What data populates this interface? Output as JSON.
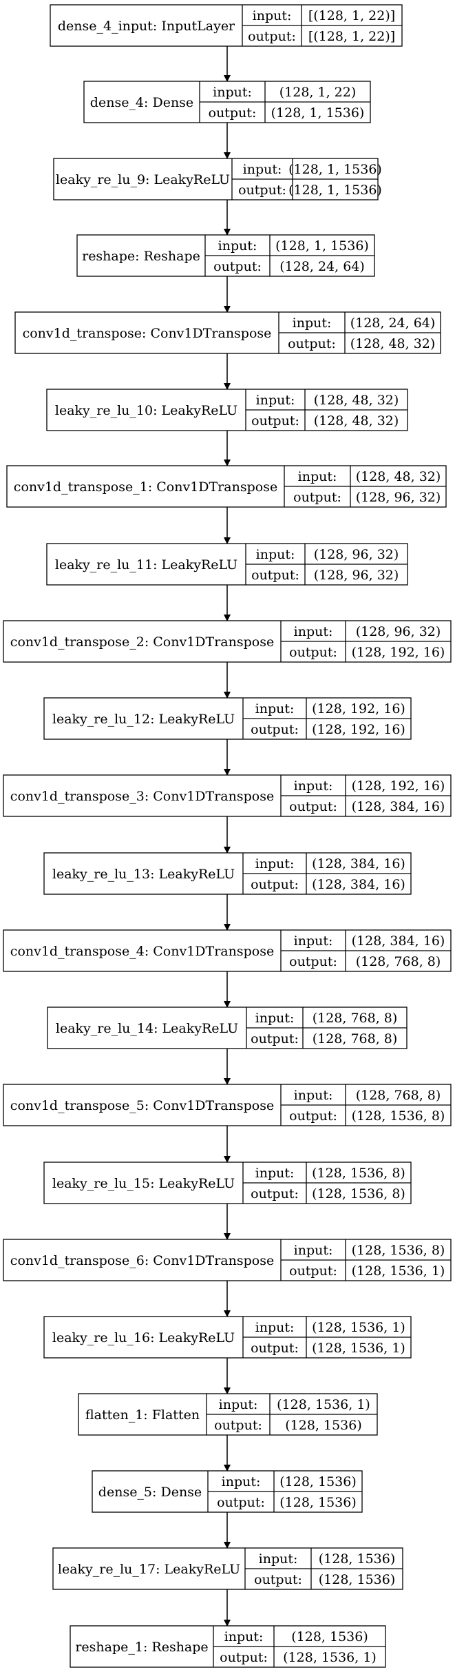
{
  "title": "Keras model plot",
  "labels": {
    "input": "input:",
    "output": "output:"
  },
  "layers": [
    {
      "name": "dense_4_input: InputLayer",
      "input": "[(128, 1, 22)]",
      "output": "[(128, 1, 22)]"
    },
    {
      "name": "dense_4: Dense",
      "input": "(128, 1, 22)",
      "output": "(128, 1, 1536)"
    },
    {
      "name": "leaky_re_lu_9: LeakyReLU",
      "input": "(128, 1, 1536)",
      "output": "(128, 1, 1536)"
    },
    {
      "name": "reshape: Reshape",
      "input": "(128, 1, 1536)",
      "output": "(128, 24, 64)"
    },
    {
      "name": "conv1d_transpose: Conv1DTranspose",
      "input": "(128, 24, 64)",
      "output": "(128, 48, 32)"
    },
    {
      "name": "leaky_re_lu_10: LeakyReLU",
      "input": "(128, 48, 32)",
      "output": "(128, 48, 32)"
    },
    {
      "name": "conv1d_transpose_1: Conv1DTranspose",
      "input": "(128, 48, 32)",
      "output": "(128, 96, 32)"
    },
    {
      "name": "leaky_re_lu_11: LeakyReLU",
      "input": "(128, 96, 32)",
      "output": "(128, 96, 32)"
    },
    {
      "name": "conv1d_transpose_2: Conv1DTranspose",
      "input": "(128, 96, 32)",
      "output": "(128, 192, 16)"
    },
    {
      "name": "leaky_re_lu_12: LeakyReLU",
      "input": "(128, 192, 16)",
      "output": "(128, 192, 16)"
    },
    {
      "name": "conv1d_transpose_3: Conv1DTranspose",
      "input": "(128, 192, 16)",
      "output": "(128, 384, 16)"
    },
    {
      "name": "leaky_re_lu_13: LeakyReLU",
      "input": "(128, 384, 16)",
      "output": "(128, 384, 16)"
    },
    {
      "name": "conv1d_transpose_4: Conv1DTranspose",
      "input": "(128, 384, 16)",
      "output": "(128, 768, 8)"
    },
    {
      "name": "leaky_re_lu_14: LeakyReLU",
      "input": "(128, 768, 8)",
      "output": "(128, 768, 8)"
    },
    {
      "name": "conv1d_transpose_5: Conv1DTranspose",
      "input": "(128, 768, 8)",
      "output": "(128, 1536, 8)"
    },
    {
      "name": "leaky_re_lu_15: LeakyReLU",
      "input": "(128, 1536, 8)",
      "output": "(128, 1536, 8)"
    },
    {
      "name": "conv1d_transpose_6: Conv1DTranspose",
      "input": "(128, 1536, 8)",
      "output": "(128, 1536, 1)"
    },
    {
      "name": "leaky_re_lu_16: LeakyReLU",
      "input": "(128, 1536, 1)",
      "output": "(128, 1536, 1)"
    },
    {
      "name": "flatten_1: Flatten",
      "input": "(128, 1536, 1)",
      "output": "(128, 1536)"
    },
    {
      "name": "dense_5: Dense",
      "input": "(128, 1536)",
      "output": "(128, 1536)"
    },
    {
      "name": "leaky_re_lu_17: LeakyReLU",
      "input": "(128, 1536)",
      "output": "(128, 1536)"
    },
    {
      "name": "reshape_1: Reshape",
      "input": "(128, 1536)",
      "output": "(128, 1536, 1)"
    }
  ]
}
